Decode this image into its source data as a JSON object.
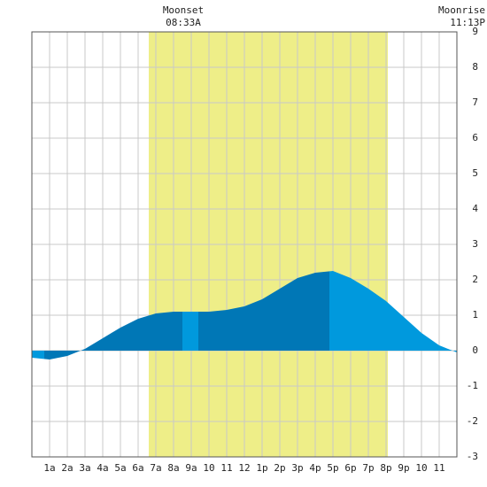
{
  "chart_data": {
    "type": "area",
    "x": [
      0,
      1,
      2,
      3,
      4,
      5,
      6,
      7,
      8,
      9,
      10,
      11,
      12,
      13,
      14,
      15,
      16,
      17,
      18,
      19,
      20,
      21,
      22,
      23,
      24
    ],
    "values": [
      -0.2,
      -0.25,
      -0.15,
      0.05,
      0.35,
      0.65,
      0.9,
      1.05,
      1.1,
      1.1,
      1.1,
      1.15,
      1.25,
      1.45,
      1.75,
      2.05,
      2.2,
      2.25,
      2.05,
      1.75,
      1.4,
      0.95,
      0.5,
      0.15,
      -0.05
    ],
    "shading": [
      {
        "start": 0,
        "end": 0.7,
        "color": "#0099dd"
      },
      {
        "start": 0.7,
        "end": 8.5,
        "color": "#0077b6"
      },
      {
        "start": 8.5,
        "end": 9.4,
        "color": "#0099dd"
      },
      {
        "start": 9.4,
        "end": 16.8,
        "color": "#0077b6"
      },
      {
        "start": 16.8,
        "end": 24,
        "color": "#0099dd"
      }
    ],
    "daylight": [
      6.6,
      20.1
    ],
    "daylight_color": "#eeee88",
    "events": [
      {
        "name": "Moonset",
        "time": "08:33A",
        "x": 8.55
      },
      {
        "name": "Moonrise",
        "time": "11:13P",
        "x": 23.22
      }
    ],
    "xlim": [
      0,
      24
    ],
    "ylim": [
      -3,
      9
    ],
    "xticks": [
      {
        "value": 1,
        "label": "1a"
      },
      {
        "value": 2,
        "label": "2a"
      },
      {
        "value": 3,
        "label": "3a"
      },
      {
        "value": 4,
        "label": "4a"
      },
      {
        "value": 5,
        "label": "5a"
      },
      {
        "value": 6,
        "label": "6a"
      },
      {
        "value": 7,
        "label": "7a"
      },
      {
        "value": 8,
        "label": "8a"
      },
      {
        "value": 9,
        "label": "9a"
      },
      {
        "value": 10,
        "label": "10"
      },
      {
        "value": 11,
        "label": "11"
      },
      {
        "value": 12,
        "label": "12"
      },
      {
        "value": 13,
        "label": "1p"
      },
      {
        "value": 14,
        "label": "2p"
      },
      {
        "value": 15,
        "label": "3p"
      },
      {
        "value": 16,
        "label": "4p"
      },
      {
        "value": 17,
        "label": "5p"
      },
      {
        "value": 18,
        "label": "6p"
      },
      {
        "value": 19,
        "label": "7p"
      },
      {
        "value": 20,
        "label": "8p"
      },
      {
        "value": 21,
        "label": "9p"
      },
      {
        "value": 22,
        "label": "10"
      },
      {
        "value": 23,
        "label": "11"
      }
    ],
    "yticks": [
      -3,
      -2,
      -1,
      0,
      1,
      2,
      3,
      4,
      5,
      6,
      7,
      8,
      9
    ],
    "grid": true
  }
}
